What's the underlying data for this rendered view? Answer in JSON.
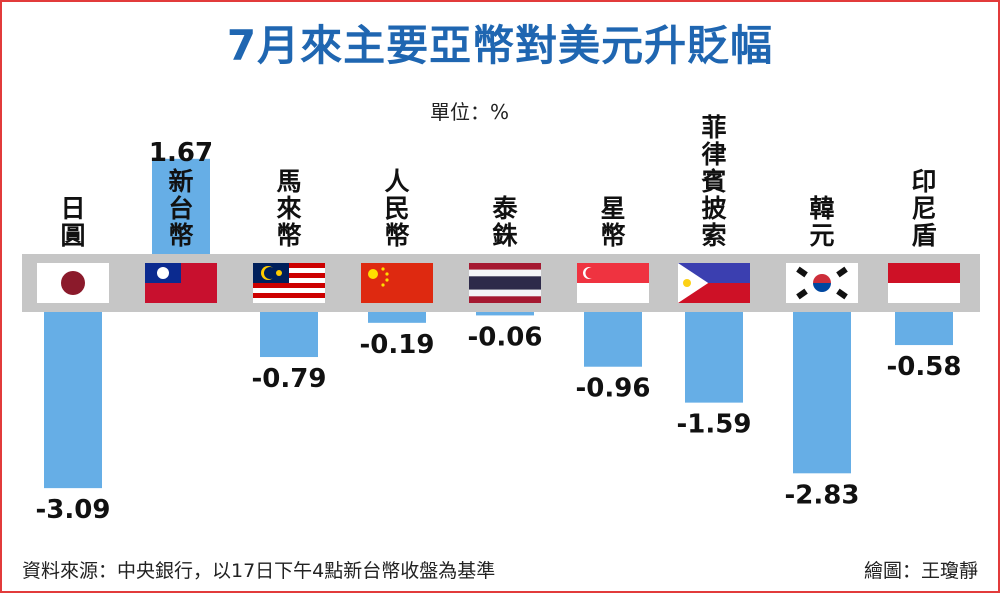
{
  "header": {
    "title": "7月來主要亞幣對美元升貶幅"
  },
  "unit_label": "單位：%",
  "footer": {
    "source": "資料來源：中央銀行，以17日下午4點新台幣收盤為基準",
    "credit": "繪圖：王瓊靜"
  },
  "colors": {
    "title": "#1f66b1",
    "bar": "#66aee6",
    "highlight": "#66aee6",
    "band": "#c6c6c6",
    "frame": "#e23b3b"
  },
  "flags": [
    "japan-flag-icon",
    "taiwan-flag-icon",
    "malaysia-flag-icon",
    "china-flag-icon",
    "thailand-flag-icon",
    "singapore-flag-icon",
    "philippines-flag-icon",
    "korea-flag-icon",
    "indonesia-flag-icon"
  ],
  "chart_data": {
    "type": "bar",
    "title": "7月來主要亞幣對美元升貶幅",
    "unit": "%",
    "categories": [
      "日圓",
      "新台幣",
      "馬來幣",
      "人民幣",
      "泰銖",
      "星幣",
      "菲律賓披索",
      "韓元",
      "印尼盾"
    ],
    "values": [
      -3.09,
      1.67,
      -0.79,
      -0.19,
      -0.06,
      -0.96,
      -1.59,
      -2.83,
      -0.58
    ],
    "value_labels": [
      "-3.09",
      "1.67",
      "-0.79",
      "-0.19",
      "-0.06",
      "-0.96",
      "-1.59",
      "-2.83",
      "-0.58"
    ],
    "highlight": "新台幣"
  }
}
